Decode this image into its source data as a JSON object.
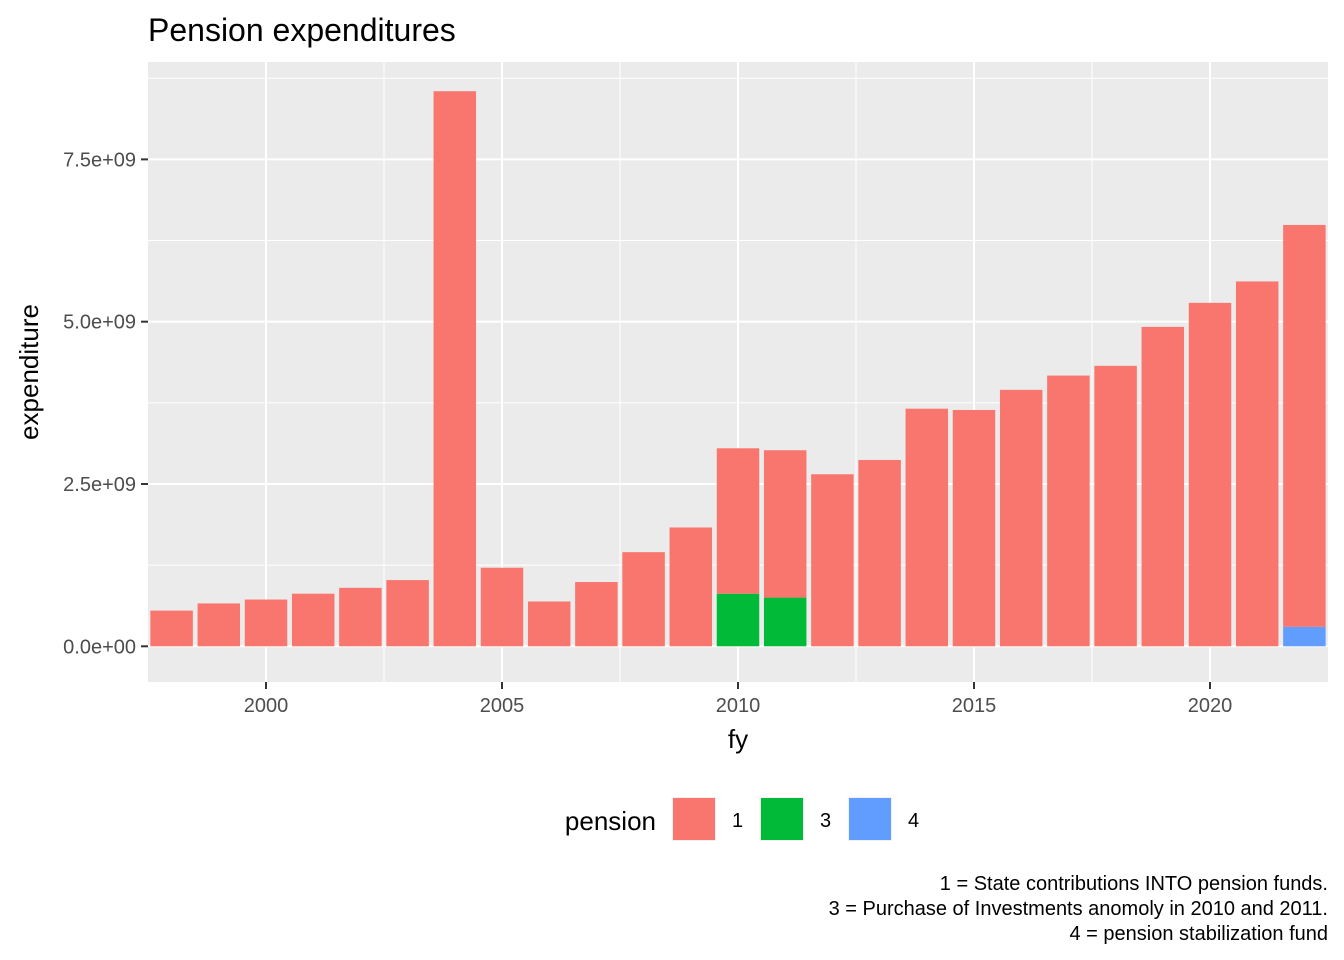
{
  "chart_data": {
    "type": "bar",
    "stacked": true,
    "title": "Pension expenditures",
    "xlabel": "fy",
    "ylabel": "expenditure",
    "xlim": [
      1997.5,
      2022.5
    ],
    "ylim": [
      -550000000.0,
      9000000000.0
    ],
    "x_ticks": [
      2000,
      2005,
      2010,
      2015,
      2020
    ],
    "x_tick_labels": [
      "2000",
      "2005",
      "2010",
      "2015",
      "2020"
    ],
    "y_ticks": [
      0,
      2500000000.0,
      5000000000.0,
      7500000000.0
    ],
    "y_tick_labels": [
      "0.0e+00",
      "2.5e+09",
      "5.0e+09",
      "7.5e+09"
    ],
    "grid": true,
    "legend_position": "bottom",
    "legend_title": "pension",
    "series": [
      {
        "name": "1",
        "color": "#F8766D",
        "points": [
          {
            "x": 1998,
            "y": 550000000
          },
          {
            "x": 1999,
            "y": 660000000
          },
          {
            "x": 2000,
            "y": 720000000
          },
          {
            "x": 2001,
            "y": 810000000
          },
          {
            "x": 2002,
            "y": 900000000
          },
          {
            "x": 2003,
            "y": 1020000000
          },
          {
            "x": 2004,
            "y": 8550000000
          },
          {
            "x": 2005,
            "y": 1210000000
          },
          {
            "x": 2006,
            "y": 690000000
          },
          {
            "x": 2007,
            "y": 990000000
          },
          {
            "x": 2008,
            "y": 1450000000
          },
          {
            "x": 2009,
            "y": 1830000000
          },
          {
            "x": 2010,
            "y": 2240000000
          },
          {
            "x": 2011,
            "y": 2270000000
          },
          {
            "x": 2012,
            "y": 2650000000
          },
          {
            "x": 2013,
            "y": 2870000000
          },
          {
            "x": 2014,
            "y": 3660000000
          },
          {
            "x": 2015,
            "y": 3640000000
          },
          {
            "x": 2016,
            "y": 3950000000
          },
          {
            "x": 2017,
            "y": 4170000000
          },
          {
            "x": 2018,
            "y": 4320000000
          },
          {
            "x": 2019,
            "y": 4920000000
          },
          {
            "x": 2020,
            "y": 5290000000
          },
          {
            "x": 2021,
            "y": 5620000000
          },
          {
            "x": 2022,
            "y": 6190000000
          }
        ]
      },
      {
        "name": "3",
        "color": "#00BA38",
        "points": [
          {
            "x": 2010,
            "y": 810000000
          },
          {
            "x": 2011,
            "y": 750000000
          }
        ]
      },
      {
        "name": "4",
        "color": "#619CFF",
        "points": [
          {
            "x": 2022,
            "y": 300000000
          }
        ]
      }
    ],
    "caption_lines": [
      "1 = State contributions INTO pension funds.",
      "3 = Purchase of Investments anomoly in 2010 and 2011.",
      "4 = pension stabilization fund"
    ]
  }
}
